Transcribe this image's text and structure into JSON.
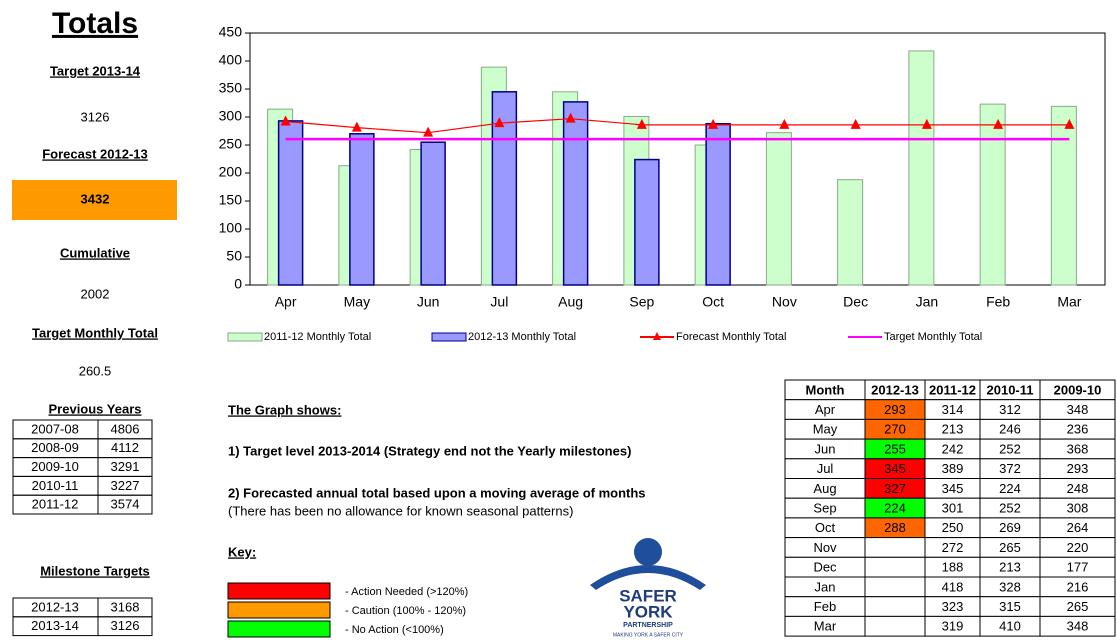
{
  "chart_data": {
    "type": "bar",
    "categories": [
      "Apr",
      "May",
      "Jun",
      "Jul",
      "Aug",
      "Sep",
      "Oct",
      "Nov",
      "Dec",
      "Jan",
      "Feb",
      "Mar"
    ],
    "ylim": [
      0,
      450
    ],
    "yticks": [
      0,
      50,
      100,
      150,
      200,
      250,
      300,
      350,
      400,
      450
    ],
    "series": [
      {
        "name": "2011-12 Monthly Total",
        "type": "bar",
        "color": "#ccffcc",
        "values": [
          314,
          213,
          242,
          389,
          345,
          301,
          250,
          272,
          188,
          418,
          323,
          319
        ]
      },
      {
        "name": "2012-13 Monthly Total",
        "type": "bar",
        "color": "#9999ff",
        "values": [
          293,
          270,
          255,
          345,
          327,
          224,
          288,
          null,
          null,
          null,
          null,
          null
        ]
      },
      {
        "name": "Forecast Monthly Total",
        "type": "line",
        "color": "#ff0000",
        "values": [
          292,
          281,
          272,
          289,
          297,
          286,
          286,
          286,
          286,
          286,
          286,
          286
        ]
      },
      {
        "name": "Target Monthly Total",
        "type": "line",
        "color": "#ff00ff",
        "values": [
          260.5,
          260.5,
          260.5,
          260.5,
          260.5,
          260.5,
          260.5,
          260.5,
          260.5,
          260.5,
          260.5,
          260.5
        ]
      }
    ]
  },
  "totals": {
    "title": "Totals",
    "target_label": "Target 2013-14",
    "target": 3126,
    "forecast_label": "Forecast 2012-13",
    "forecast": 3432,
    "forecast_color": "#ff9900",
    "cumulative_label": "Cumulative",
    "cumulative": 2002,
    "monthly_label": "Target Monthly Total",
    "monthly": 260.5
  },
  "previous_years": {
    "title": "Previous Years",
    "rows": [
      [
        "2007-08",
        4806
      ],
      [
        "2008-09",
        4112
      ],
      [
        "2009-10",
        3291
      ],
      [
        "2010-11",
        3227
      ],
      [
        "2011-12",
        3574
      ]
    ]
  },
  "milestones": {
    "title": "Milestone Targets",
    "rows": [
      [
        "2012-13",
        3168
      ],
      [
        "2013-14",
        3126
      ]
    ]
  },
  "notes": {
    "heading": "The Graph shows:",
    "point1": "1) Target level 2013-2014 (Strategy end not the Yearly milestones)",
    "point2": "2) Forecasted annual total based upon a moving average of months",
    "point2_note": "(There has been no allowance for known seasonal patterns)",
    "key_heading": "Key:",
    "key": [
      {
        "color": "#ff0000",
        "label": "-   Action Needed (>120%)"
      },
      {
        "color": "#ff9900",
        "label": "-   Caution (100% - 120%)"
      },
      {
        "color": "#00ff00",
        "label": "-   No Action  (<100%)"
      }
    ]
  },
  "logo": {
    "line1": "SAFER",
    "line2": "YORK",
    "line3": "PARTNERSHIP",
    "tagline": "MAKING YORK A SAFER CITY"
  },
  "monthly_table": {
    "header": [
      "Month",
      "2012-13",
      "2011-12",
      "2010-11",
      "2009-10"
    ],
    "rows": [
      [
        "Apr",
        293,
        314,
        312,
        348
      ],
      [
        "May",
        270,
        213,
        246,
        236
      ],
      [
        "Jun",
        255,
        242,
        252,
        368
      ],
      [
        "Jul",
        345,
        389,
        372,
        293
      ],
      [
        "Aug",
        327,
        345,
        224,
        248
      ],
      [
        "Sep",
        224,
        301,
        252,
        308
      ],
      [
        "Oct",
        288,
        250,
        269,
        264
      ],
      [
        "Nov",
        null,
        272,
        265,
        220
      ],
      [
        "Dec",
        null,
        188,
        213,
        177
      ],
      [
        "Jan",
        null,
        418,
        328,
        216
      ],
      [
        "Feb",
        null,
        323,
        315,
        265
      ],
      [
        "Mar",
        null,
        319,
        410,
        348
      ]
    ],
    "colors": [
      "#ff6600",
      "#ff6600",
      "#00ff00",
      "#ff0000",
      "#ff0000",
      "#00ff00",
      "#ff6600",
      null,
      null,
      null,
      null,
      null
    ]
  }
}
